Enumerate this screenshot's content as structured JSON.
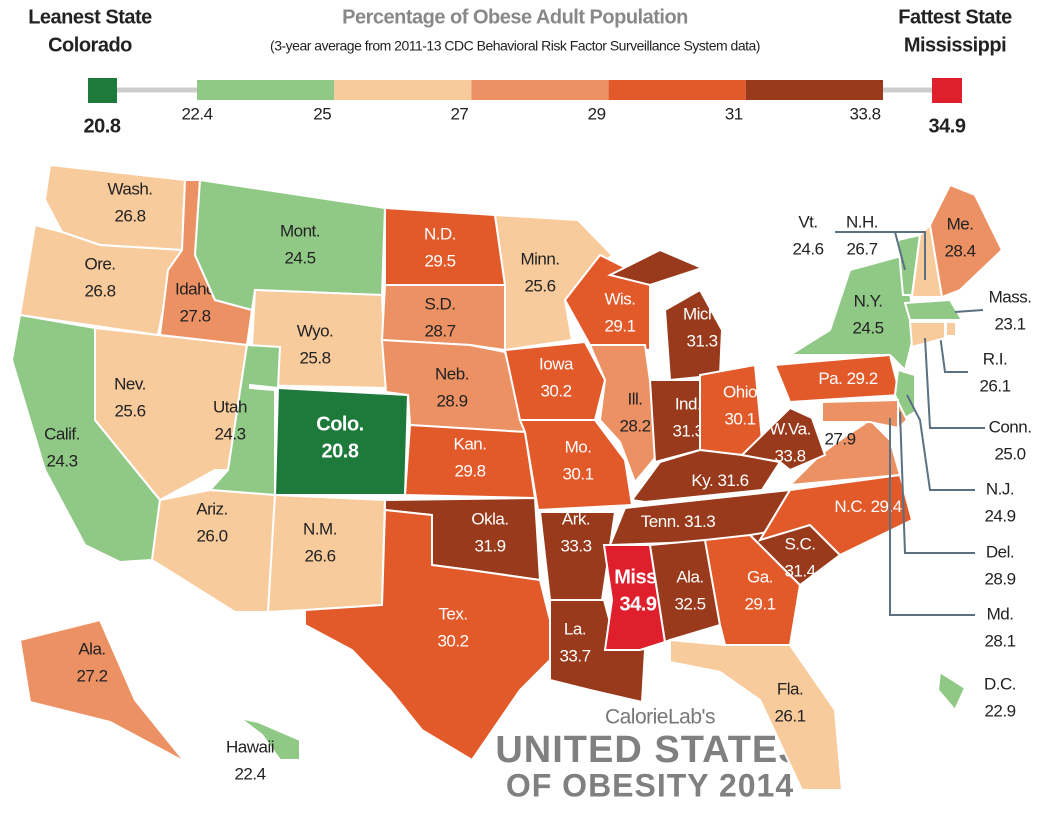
{
  "header": {
    "title": "Percentage of Obese Adult Population",
    "subtitle": "(3-year average from 2011-13 CDC Behavioral Risk Factor Surveillance System data)"
  },
  "legend": {
    "leanest_label": "Leanest State",
    "leanest_state": "Colorado",
    "leanest_value": 20.8,
    "fattest_label": "Fattest State",
    "fattest_state": "Mississippi",
    "fattest_value": 34.9,
    "breaks": [
      22.4,
      25,
      27,
      29,
      31,
      33.8
    ],
    "colors": [
      "#1d7a3a",
      "#90c985",
      "#f8cb9c",
      "#ec9163",
      "#e2592a",
      "#983a1b",
      "#e01f2c"
    ]
  },
  "states": [
    {
      "name": "Wash.",
      "value": 26.8
    },
    {
      "name": "Ore.",
      "value": 26.8
    },
    {
      "name": "Calif.",
      "value": 24.3
    },
    {
      "name": "Idaho",
      "value": 27.8
    },
    {
      "name": "Nev.",
      "value": 25.6
    },
    {
      "name": "Mont.",
      "value": 24.5
    },
    {
      "name": "Wyo.",
      "value": 25.8
    },
    {
      "name": "Utah",
      "value": 24.3
    },
    {
      "name": "Colo.",
      "value": 20.8
    },
    {
      "name": "Ariz.",
      "value": 26,
      "value_label": "26.0"
    },
    {
      "name": "N.M.",
      "value": 26.6
    },
    {
      "name": "N.D.",
      "value": 29.5
    },
    {
      "name": "S.D.",
      "value": 28.7
    },
    {
      "name": "Neb.",
      "value": 28.9
    },
    {
      "name": "Kan.",
      "value": 29.8
    },
    {
      "name": "Okla.",
      "value": 31.9
    },
    {
      "name": "Tex.",
      "value": 30.2
    },
    {
      "name": "Minn.",
      "value": 25.6
    },
    {
      "name": "Iowa",
      "value": 30.2
    },
    {
      "name": "Mo.",
      "value": 30.1
    },
    {
      "name": "Ark.",
      "value": 33.3
    },
    {
      "name": "La.",
      "value": 33.7
    },
    {
      "name": "Wis.",
      "value": 29.1
    },
    {
      "name": "Ill.",
      "value": 28.2
    },
    {
      "name": "Mich.",
      "value": 31.3
    },
    {
      "name": "Ind.",
      "value": 31.3
    },
    {
      "name": "Ohio",
      "value": 30.1
    },
    {
      "name": "Ky.",
      "value": 31.6
    },
    {
      "name": "Tenn.",
      "value": 31.3
    },
    {
      "name": "Miss.",
      "value": 34.9
    },
    {
      "name": "Ala.",
      "value": 32.5
    },
    {
      "name": "Ga.",
      "value": 29.1
    },
    {
      "name": "Fla.",
      "value": 26.1
    },
    {
      "name": "S.C.",
      "value": 31.4
    },
    {
      "name": "N.C.",
      "value": 29.4
    },
    {
      "name": "Va.",
      "value": 27.9
    },
    {
      "name": "W.Va.",
      "value": 33.8
    },
    {
      "name": "Pa.",
      "value": 29.2
    },
    {
      "name": "N.Y.",
      "value": 24.5
    },
    {
      "name": "Vt.",
      "value": 24.6
    },
    {
      "name": "N.H.",
      "value": 26.7
    },
    {
      "name": "Me.",
      "value": 28.4
    },
    {
      "name": "Mass.",
      "value": 23.1
    },
    {
      "name": "R.I.",
      "value": 26.1
    },
    {
      "name": "Conn.",
      "value": 25,
      "value_label": "25.0"
    },
    {
      "name": "N.J.",
      "value": 24.9
    },
    {
      "name": "Del.",
      "value": 28.9
    },
    {
      "name": "Md.",
      "value": 28.1
    },
    {
      "name": "Ala.",
      "value": 27.2
    },
    {
      "name": "Hawaii",
      "value": 22.4
    },
    {
      "name": "D.C.",
      "value": 22.9
    }
  ],
  "credit": {
    "brand": "CalorieLab's",
    "line1": "UNITED STATES",
    "line2": "OF OBESITY 2014"
  }
}
